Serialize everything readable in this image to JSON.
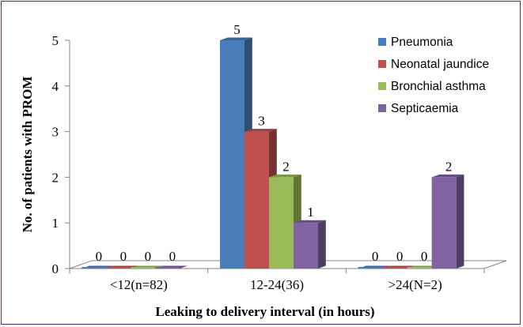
{
  "chart_data": {
    "type": "bar",
    "xlabel": "Leaking to delivery interval (in hours)",
    "ylabel": "No. of patients with PROM",
    "ylim": [
      0,
      5
    ],
    "yticks": [
      0,
      1,
      2,
      3,
      4,
      5
    ],
    "categories": [
      "<12(n=82)",
      "12-24(36)",
      ">24(N=2)"
    ],
    "series": [
      {
        "name": "Pneumonia",
        "color": "#4a7ebb",
        "values": [
          0,
          5,
          0
        ]
      },
      {
        "name": "Neonatal jaundice",
        "color": "#c0504d",
        "values": [
          0,
          3,
          0
        ]
      },
      {
        "name": "Bronchial asthma",
        "color": "#9bbb59",
        "values": [
          0,
          2,
          0
        ]
      },
      {
        "name": "Septicaemia",
        "color": "#8064a2",
        "values": [
          0,
          1,
          2
        ]
      }
    ],
    "grid": false,
    "legend_position": "top-right",
    "style": "3d-clustered-column"
  }
}
